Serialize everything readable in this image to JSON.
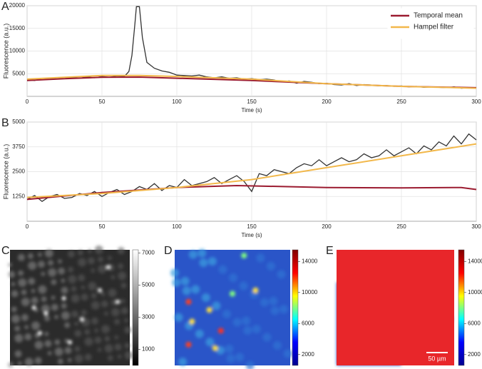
{
  "chart_data": [
    {
      "type": "line",
      "panel": "A",
      "xlabel": "Time (s)",
      "ylabel": "Fluorescence (a.u.)",
      "xlim": [
        0,
        300
      ],
      "xticks": [
        0,
        50,
        100,
        150,
        200,
        250,
        300
      ],
      "ylim": [
        0,
        20000
      ],
      "yticks": [
        5000,
        10000,
        15000,
        20000
      ],
      "grid": true,
      "legend": "upper right",
      "series": [
        {
          "color": "#333333",
          "x": [
            0,
            5,
            10,
            15,
            20,
            25,
            30,
            35,
            40,
            45,
            50,
            55,
            60,
            65,
            68,
            70,
            72,
            73,
            75,
            77,
            80,
            85,
            90,
            95,
            100,
            105,
            110,
            115,
            120,
            125,
            130,
            135,
            140,
            145,
            150,
            155,
            160,
            165,
            170,
            175,
            180,
            185,
            190,
            195,
            200,
            205,
            210,
            215,
            220,
            225,
            230,
            235,
            240,
            245,
            250,
            255,
            260,
            265,
            270,
            275,
            280,
            285,
            290,
            295,
            300
          ],
          "values": [
            3700,
            3500,
            4000,
            3800,
            4100,
            3900,
            4200,
            4000,
            4300,
            4100,
            4400,
            4200,
            4500,
            4400,
            5500,
            9000,
            16000,
            19800,
            19800,
            13000,
            7500,
            6200,
            5600,
            5300,
            4700,
            4600,
            4500,
            4700,
            4300,
            4100,
            4300,
            4000,
            4100,
            3800,
            3900,
            3700,
            3800,
            3600,
            3200,
            3400,
            2900,
            3300,
            3100,
            2800,
            2900,
            2600,
            2500,
            2800,
            2400,
            2600,
            2500,
            2300,
            2400,
            2200,
            2300,
            2100,
            2200,
            2000,
            2100,
            2000,
            1900,
            2100,
            1800,
            1900,
            1900
          ]
        },
        {
          "name": "Temporal mean",
          "color": "#9b1b30",
          "x": [
            0,
            25,
            50,
            75,
            100,
            150,
            200,
            250,
            300
          ],
          "values": [
            3500,
            3900,
            4200,
            4250,
            4000,
            3500,
            2800,
            2200,
            1900
          ]
        },
        {
          "name": "Hampel filter",
          "color": "#f2b84b",
          "x": [
            0,
            25,
            50,
            75,
            100,
            150,
            200,
            250,
            300
          ],
          "values": [
            3800,
            4200,
            4600,
            4600,
            4400,
            3800,
            2800,
            2200,
            1800
          ]
        }
      ]
    },
    {
      "type": "line",
      "panel": "B",
      "xlabel": "Time (s)",
      "ylabel": "Fluorescence (a.u.)",
      "xlim": [
        0,
        300
      ],
      "xticks": [
        0,
        50,
        100,
        150,
        200,
        250,
        300
      ],
      "ylim": [
        0,
        5000
      ],
      "yticks": [
        1250,
        2500,
        3750,
        5000
      ],
      "grid": true,
      "series": [
        {
          "color": "#333333",
          "x": [
            0,
            5,
            10,
            15,
            20,
            25,
            30,
            35,
            40,
            45,
            50,
            55,
            60,
            65,
            70,
            75,
            80,
            85,
            90,
            95,
            100,
            105,
            110,
            115,
            120,
            125,
            130,
            135,
            140,
            145,
            150,
            155,
            160,
            165,
            170,
            175,
            180,
            185,
            190,
            195,
            200,
            205,
            210,
            215,
            220,
            225,
            230,
            235,
            240,
            245,
            250,
            255,
            260,
            265,
            270,
            275,
            280,
            285,
            290,
            295,
            300
          ],
          "values": [
            1100,
            1300,
            1000,
            1250,
            1350,
            1150,
            1200,
            1400,
            1300,
            1500,
            1250,
            1450,
            1600,
            1350,
            1500,
            1750,
            1600,
            1900,
            1550,
            1800,
            1700,
            2100,
            1800,
            1900,
            2000,
            2200,
            1900,
            2100,
            2300,
            2000,
            1500,
            2400,
            2300,
            2600,
            2500,
            2400,
            2700,
            2900,
            2800,
            3100,
            2800,
            3000,
            3200,
            3000,
            3100,
            3400,
            3200,
            3300,
            3600,
            3300,
            3500,
            3700,
            3400,
            3800,
            3600,
            4000,
            3800,
            4300,
            3900,
            4400,
            4100
          ]
        },
        {
          "color": "#9b1b30",
          "x": [
            0,
            50,
            100,
            140,
            200,
            250,
            290,
            300
          ],
          "values": [
            1100,
            1450,
            1700,
            1800,
            1700,
            1680,
            1700,
            1600
          ]
        },
        {
          "color": "#f2b84b",
          "x": [
            0,
            50,
            100,
            150,
            200,
            250,
            300
          ],
          "values": [
            1200,
            1400,
            1700,
            2100,
            2700,
            3300,
            3900
          ]
        }
      ]
    },
    {
      "type": "image",
      "panel": "C",
      "colormap": "gray",
      "clim": [
        0,
        7200
      ],
      "cticks": [
        1000,
        3000,
        5000,
        7000
      ]
    },
    {
      "type": "image",
      "panel": "D",
      "colormap": "jet",
      "clim": [
        600,
        15500
      ],
      "cticks": [
        2000,
        6000,
        10000,
        14000
      ]
    },
    {
      "type": "image",
      "panel": "E",
      "colormap": "jet",
      "clim": [
        600,
        15500
      ],
      "cticks": [
        2000,
        6000,
        10000,
        14000
      ],
      "scale_bar": "50 µm"
    }
  ]
}
